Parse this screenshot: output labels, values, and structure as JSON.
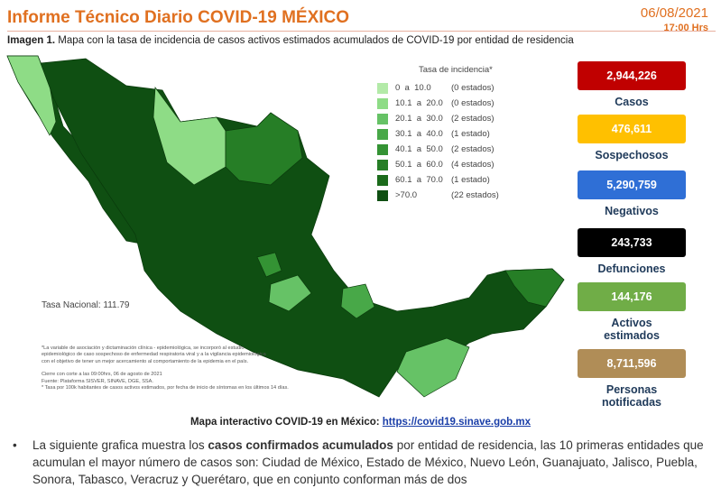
{
  "header": {
    "title": "Informe Técnico Diario COVID-19 MÉXICO",
    "date": "06/08/2021",
    "time": "17:00 Hrs"
  },
  "caption": {
    "label": "Imagen 1.",
    "text": "Mapa con la tasa de incidencia de casos activos estimados acumulados de COVID-19 por entidad de residencia"
  },
  "legend": {
    "title": "Tasa de incidencia*",
    "items": [
      {
        "range": "0  a  10.0",
        "count": "(0 estados)",
        "color": "#b3eaa8"
      },
      {
        "range": "10.1  a  20.0",
        "count": "(0 estados)",
        "color": "#8edc86"
      },
      {
        "range": "20.1  a  30.0",
        "count": "(2 estados)",
        "color": "#66c266"
      },
      {
        "range": "30.1  a  40.0",
        "count": "(1 estado)",
        "color": "#48a848"
      },
      {
        "range": "40.1  a  50.0",
        "count": "(2 estados)",
        "color": "#349334"
      },
      {
        "range": "50.1  a  60.0",
        "count": "(4 estados)",
        "color": "#267e26"
      },
      {
        "range": "60.1  a  70.0",
        "count": "(1 estado)",
        "color": "#1b6b1b"
      },
      {
        "range": ">70.0",
        "count": "(22 estados)",
        "color": "#0f4f12"
      }
    ]
  },
  "national_rate": "Tasa Nacional: 111.79",
  "footnotes": [
    "*La variable de asociación y dictaminación clínica - epidemiológica, se incorporó al estudio",
    "epidemiológico de caso sospechoso de enfermedad respiratoria viral y a la vigilancia epidemiológica",
    "con el objetivo de tener un mejor acercamiento al comportamiento de la epidemia en el país.",
    "",
    "Cierre con corte a las 09:00hrs, 06 de agosto de 2021",
    "Fuente: Plataforma SISVER, SINAVE, DGE, SSA.",
    "* Tasa por 100k habitantes de casos activos estimados, por fecha de inicio de síntomas en los últimos 14 días."
  ],
  "stats": [
    {
      "value": "2,944,226",
      "label": "Casos",
      "color": "#c00000"
    },
    {
      "value": "476,611",
      "label": "Sospechosos",
      "color": "#ffc000"
    },
    {
      "value": "5,290,759",
      "label": "Negativos",
      "color": "#2f6fd6"
    },
    {
      "value": "243,733",
      "label": "Defunciones",
      "color": "#000000"
    },
    {
      "value": "144,176",
      "label": "Activos estimados",
      "color": "#70ad47"
    },
    {
      "value": "8,711,596",
      "label": "Personas notificadas",
      "color": "#b08d57"
    }
  ],
  "link": {
    "text": "Mapa interactivo COVID-19 en México: ",
    "url": "https://covid19.sinave.gob.mx"
  },
  "bullet": {
    "before": "La siguiente grafica muestra los ",
    "bold": "casos confirmados acumulados",
    "after": " por entidad de residencia, las 10 primeras entidades que acumulan el mayor número de casos son: Ciudad de México, Estado de México, Nuevo León, Guanajuato, Jalisco, Puebla, Sonora, Tabasco, Veracruz y Querétaro, que en conjunto conforman más de dos"
  }
}
